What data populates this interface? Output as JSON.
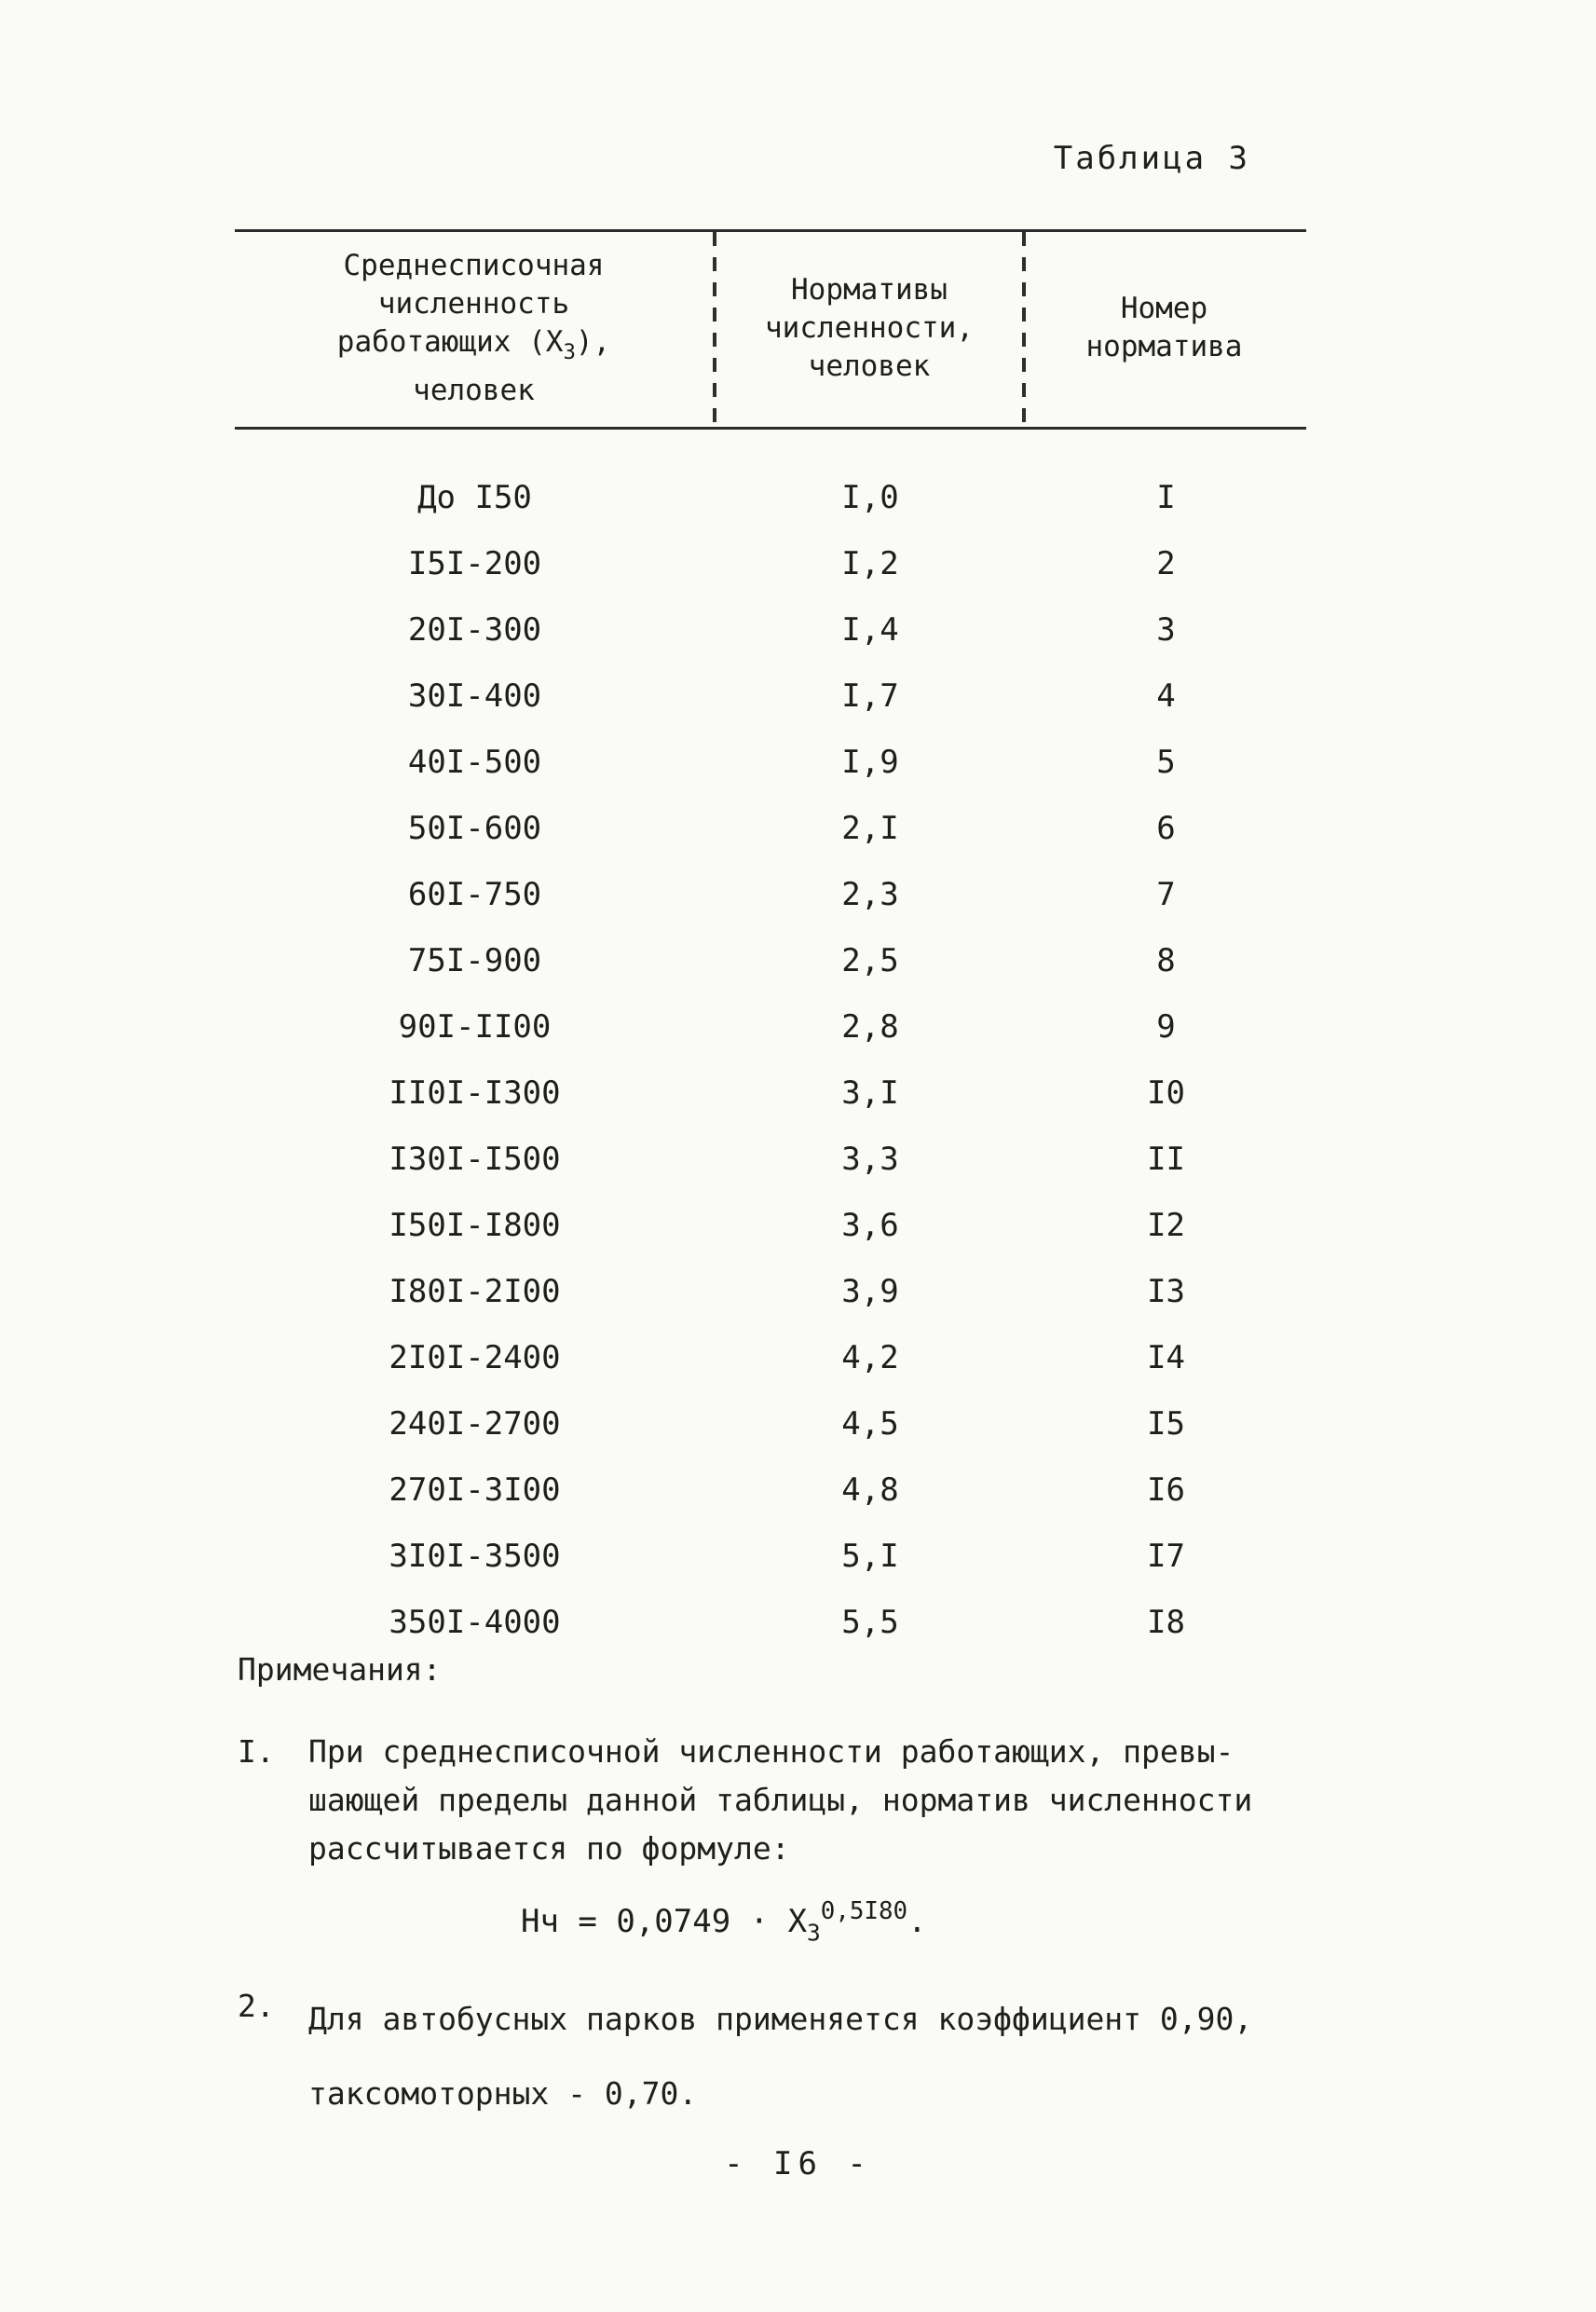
{
  "page": {
    "title": "Таблица 3",
    "footer": "-  I6  -"
  },
  "table": {
    "headers": [
      {
        "line1": "Среднесписочная",
        "line2": "численность",
        "line3_pre": "работающих (Х",
        "line3_sub": "3",
        "line3_post": "),",
        "line4": "человек"
      },
      {
        "line1": "Нормативы",
        "line2": "численности,",
        "line3": "человек"
      },
      {
        "line1": "Номер",
        "line2": "норматива"
      }
    ],
    "rows": [
      [
        "До I50",
        "I,0",
        "I"
      ],
      [
        "I5I-200",
        "I,2",
        "2"
      ],
      [
        "20I-300",
        "I,4",
        "3"
      ],
      [
        "30I-400",
        "I,7",
        "4"
      ],
      [
        "40I-500",
        "I,9",
        "5"
      ],
      [
        "50I-600",
        "2,I",
        "6"
      ],
      [
        "60I-750",
        "2,3",
        "7"
      ],
      [
        "75I-900",
        "2,5",
        "8"
      ],
      [
        "90I-II00",
        "2,8",
        "9"
      ],
      [
        "II0I-I300",
        "3,I",
        "I0"
      ],
      [
        "I30I-I500",
        "3,3",
        "II"
      ],
      [
        "I50I-I800",
        "3,6",
        "I2"
      ],
      [
        "I80I-2I00",
        "3,9",
        "I3"
      ],
      [
        "2I0I-2400",
        "4,2",
        "I4"
      ],
      [
        "240I-2700",
        "4,5",
        "I5"
      ],
      [
        "270I-3I00",
        "4,8",
        "I6"
      ],
      [
        "3I0I-3500",
        "5,I",
        "I7"
      ],
      [
        "350I-4000",
        "5,5",
        "I8"
      ]
    ]
  },
  "notes": {
    "heading": "Примечания:",
    "items": [
      {
        "number": "I.",
        "line1": "При среднесписочной численности работающих, превы-",
        "line2": "шающей пределы данной таблицы, норматив численности",
        "line3": "рассчитывается по формуле:",
        "formula_pre": "Нч = 0,0749 · Х",
        "formula_sub": "3",
        "formula_sup": "0,5I80",
        "formula_post": "."
      },
      {
        "number": "2.",
        "line1": "Для автобусных парков применяется коэффициент 0,90,",
        "line2": "таксомоторных - 0,70."
      }
    ]
  },
  "colors": {
    "ink": "#1e1e1e",
    "paper": "#fafaf6",
    "rule": "#2b2b2b"
  }
}
